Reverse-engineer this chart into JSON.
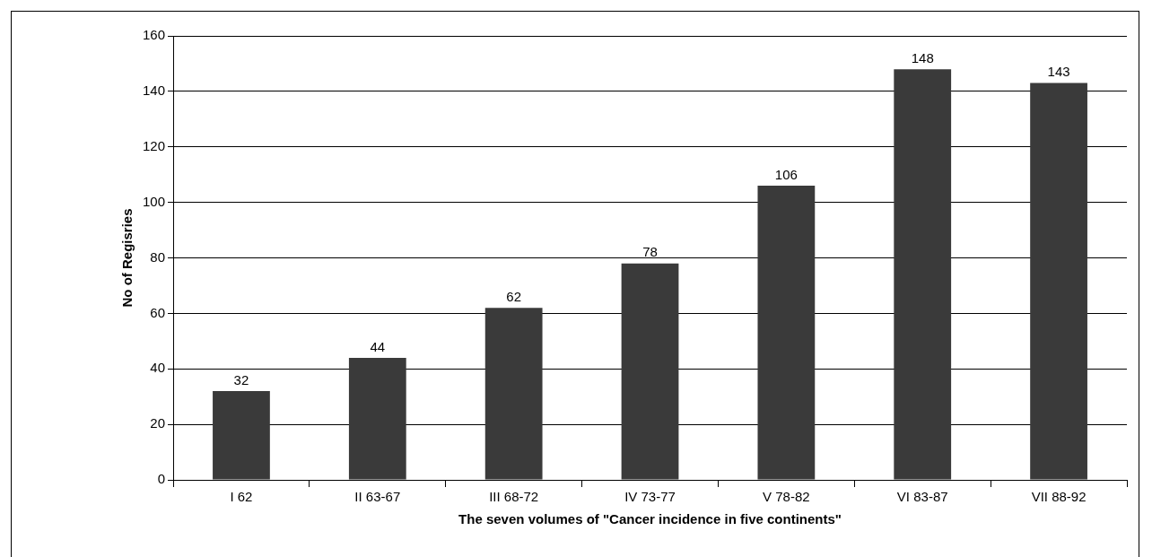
{
  "chart_data": {
    "type": "bar",
    "xlabel": "The seven volumes of \"Cancer incidence in five continents\"",
    "ylabel": "No of Regisries",
    "categories": [
      "I 62",
      "II 63-67",
      "III 68-72",
      "IV 73-77",
      "V 78-82",
      "VI 83-87",
      "VII 88-92"
    ],
    "values": [
      32,
      44,
      62,
      78,
      106,
      148,
      143
    ],
    "color": "#3a3a3a",
    "ylim": [
      0,
      160
    ],
    "yticks": [
      0,
      20,
      40,
      60,
      80,
      100,
      120,
      140,
      160
    ],
    "grid": "y",
    "data_labels": true,
    "legend": false
  }
}
